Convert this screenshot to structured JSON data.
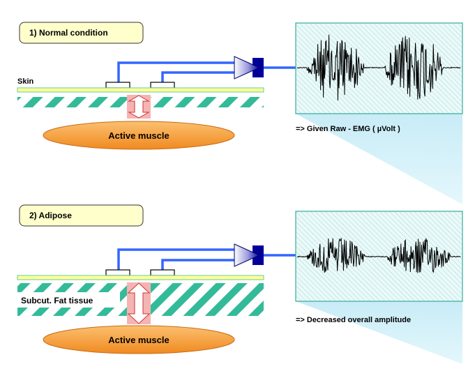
{
  "panels": [
    {
      "title": "1) Normal condition",
      "layer_label": "Skin",
      "muscle_label": "Active muscle",
      "result": "=> Given Raw  - EMG ( µVolt )",
      "relative_amplitude": 1.0
    },
    {
      "title": "2) Adipose",
      "layer_label": "Subcut. Fat  tissue",
      "muscle_label": "Active muscle",
      "result": "=> Decreased overall amplitude",
      "relative_amplitude": 0.55
    }
  ],
  "colors": {
    "title_box_fill": "#ffffcc",
    "skin_line": "#ffff99",
    "skin_border": "#66cc99",
    "hatch": "#33bb99",
    "muscle": "#f5a040",
    "arrow_fill": "#ffffff",
    "arrow_glow": "#f08080",
    "wire": "#3366ff",
    "amplifier_dark": "#000099",
    "amplifier_light": "#ffffff",
    "signal_box_fill": "#e9fafa",
    "signal_box_border": "#33aa99",
    "signal_box_hatch": "#99bbbb",
    "signal": "#000000",
    "shadow": "#d7f0f8"
  },
  "icons": [
    "electrode-icon",
    "amplifier-icon",
    "double-arrow-icon"
  ]
}
